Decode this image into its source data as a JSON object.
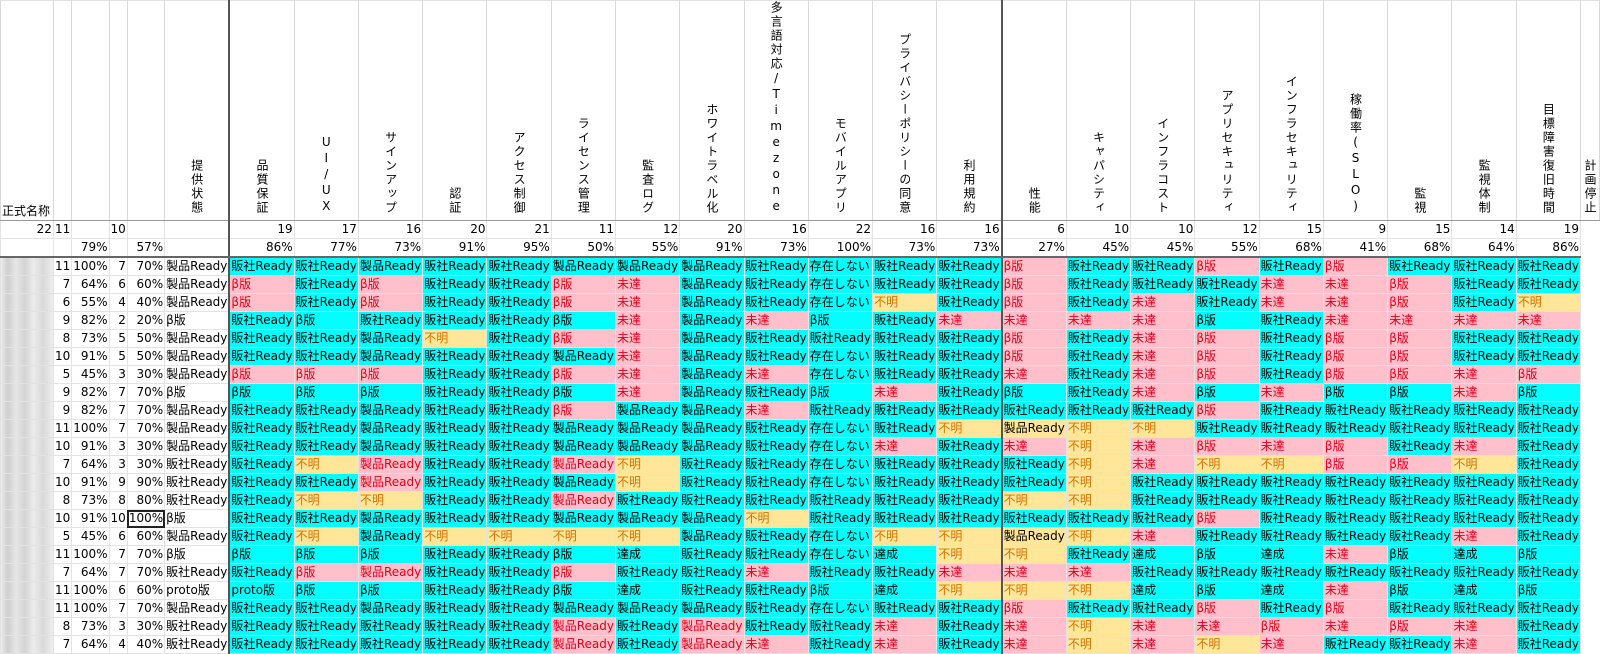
{
  "header": {
    "name_label": "正式名称",
    "columns": [
      "提供状態",
      "品質保証",
      "UI/UX",
      "サインアップ",
      "認証",
      "アクセス制御",
      "ライセンス管理",
      "監査ログ",
      "ホワイトラベル化",
      "多言語対応/Timezone",
      "モバイルアプリ",
      "プライバシーポリシーの同意",
      "利用規約",
      "性能",
      "キャパシティ",
      "インフラコスト",
      "アプリセキュリティ",
      "インフラセキュリティ",
      "稼働率(SLO)",
      "監視",
      "監視体制",
      "目標障害復旧時間",
      "計画停止"
    ]
  },
  "counts": {
    "a": "22",
    "b": "11",
    "c": "",
    "d": "10",
    "e": "",
    "cols": [
      "",
      "19",
      "17",
      "16",
      "20",
      "21",
      "11",
      "12",
      "20",
      "16",
      "22",
      "16",
      "16",
      "6",
      "10",
      "10",
      "12",
      "15",
      "9",
      "15",
      "14",
      "19"
    ]
  },
  "percents": {
    "a": "",
    "b": "",
    "c": "79%",
    "d": "",
    "e": "57%",
    "cols": [
      "",
      "86%",
      "77%",
      "73%",
      "91%",
      "95%",
      "50%",
      "55%",
      "91%",
      "73%",
      "100%",
      "73%",
      "73%",
      "27%",
      "45%",
      "45%",
      "55%",
      "68%",
      "41%",
      "68%",
      "64%",
      "86%"
    ]
  },
  "legend": {
    "ready_vendor": "販社Ready",
    "ready_product": "製品Ready",
    "beta": "β版",
    "unachieved": "未達",
    "unknown": "不明",
    "none": "存在しない",
    "achieved": "達成",
    "proto": "proto版"
  },
  "colors": {
    "cyan": "#00ffff",
    "pink": "#ffc0cb",
    "yellow": "#ffe699",
    "red_text": "#e0001b",
    "orange_text": "#d27400"
  },
  "rows": [
    {
      "n1": "11",
      "p1": "100%",
      "n2": "7",
      "p2": "70%",
      "state": "製品Ready",
      "cells": [
        "販社Ready",
        "販社Ready",
        "製品Ready",
        "販社Ready",
        "販社Ready",
        "製品Ready",
        "製品Ready",
        "製品Ready",
        "販社Ready",
        "存在しない",
        "販社Ready",
        "販社Ready",
        "β版",
        "販社Ready",
        "販社Ready",
        "β版",
        "販社Ready",
        "β版",
        "販社Ready",
        "販社Ready",
        "販社Ready"
      ]
    },
    {
      "n1": "7",
      "p1": "64%",
      "n2": "6",
      "p2": "60%",
      "state": "製品Ready",
      "cells": [
        "β版",
        "販社Ready",
        "β版",
        "販社Ready",
        "販社Ready",
        "β版",
        "未達",
        "製品Ready",
        "販社Ready",
        "存在しない",
        "販社Ready",
        "販社Ready",
        "β版",
        "販社Ready",
        "販社Ready",
        "販社Ready",
        "未達",
        "未達",
        "β版",
        "販社Ready",
        "販社Ready"
      ]
    },
    {
      "n1": "6",
      "p1": "55%",
      "n2": "4",
      "p2": "40%",
      "state": "製品Ready",
      "cells": [
        "β版",
        "販社Ready",
        "β版",
        "販社Ready",
        "販社Ready",
        "β版",
        "未達",
        "製品Ready",
        "販社Ready",
        "存在しない",
        "不明",
        "販社Ready",
        "β版",
        "販社Ready",
        "未達",
        "販社Ready",
        "未達",
        "未達",
        "β版",
        "販社Ready",
        "不明"
      ]
    },
    {
      "n1": "9",
      "p1": "82%",
      "n2": "2",
      "p2": "20%",
      "state": "β版",
      "cells": [
        "販社Ready",
        "β版",
        "販社Ready",
        "販社Ready",
        "販社Ready",
        "β版",
        "未達",
        "製品Ready",
        "未達",
        "β版",
        "販社Ready",
        "未達",
        "未達",
        "未達",
        "未達",
        "β版",
        "販社Ready",
        "未達",
        "未達",
        "未達",
        "未達"
      ]
    },
    {
      "n1": "8",
      "p1": "73%",
      "n2": "5",
      "p2": "50%",
      "state": "製品Ready",
      "cells": [
        "販社Ready",
        "販社Ready",
        "製品Ready",
        "不明",
        "販社Ready",
        "β版",
        "未達",
        "製品Ready",
        "販社Ready",
        "販社Ready",
        "販社Ready",
        "販社Ready",
        "β版",
        "販社Ready",
        "未達",
        "β版",
        "販社Ready",
        "β版",
        "β版",
        "販社Ready",
        "販社Ready"
      ]
    },
    {
      "n1": "10",
      "p1": "91%",
      "n2": "5",
      "p2": "50%",
      "state": "製品Ready",
      "cells": [
        "販社Ready",
        "販社Ready",
        "製品Ready",
        "販社Ready",
        "販社Ready",
        "製品Ready",
        "未達",
        "製品Ready",
        "販社Ready",
        "存在しない",
        "販社Ready",
        "販社Ready",
        "β版",
        "販社Ready",
        "未達",
        "β版",
        "販社Ready",
        "β版",
        "β版",
        "販社Ready",
        "販社Ready"
      ]
    },
    {
      "n1": "5",
      "p1": "45%",
      "n2": "3",
      "p2": "30%",
      "state": "製品Ready",
      "cells": [
        "β版",
        "β版",
        "β版",
        "販社Ready",
        "販社Ready",
        "β版",
        "未達",
        "製品Ready",
        "未達",
        "存在しない",
        "販社Ready",
        "販社Ready",
        "未達",
        "販社Ready",
        "未達",
        "β版",
        "販社Ready",
        "β版",
        "β版",
        "未達",
        "β版"
      ]
    },
    {
      "n1": "9",
      "p1": "82%",
      "n2": "7",
      "p2": "70%",
      "state": "β版",
      "cells": [
        "β版",
        "β版",
        "β版",
        "販社Ready",
        "販社Ready",
        "β版",
        "未達",
        "製品Ready",
        "販社Ready",
        "β版",
        "未達",
        "販社Ready",
        "β版",
        "販社Ready",
        "未達",
        "β版",
        "未達",
        "β版",
        "β版",
        "未達",
        "β版"
      ]
    },
    {
      "n1": "9",
      "p1": "82%",
      "n2": "7",
      "p2": "70%",
      "state": "製品Ready",
      "cells": [
        "販社Ready",
        "販社Ready",
        "製品Ready",
        "販社Ready",
        "販社Ready",
        "β版",
        "製品Ready",
        "製品Ready",
        "未達",
        "販社Ready",
        "販社Ready",
        "販社Ready",
        "販社Ready",
        "販社Ready",
        "販社Ready",
        "β版",
        "販社Ready",
        "販社Ready",
        "販社Ready",
        "販社Ready",
        "販社Ready"
      ]
    },
    {
      "n1": "11",
      "p1": "100%",
      "n2": "7",
      "p2": "70%",
      "state": "製品Ready",
      "cells": [
        "販社Ready",
        "販社Ready",
        "製品Ready",
        "販社Ready",
        "販社Ready",
        "製品Ready",
        "製品Ready",
        "製品Ready",
        "販社Ready",
        "存在しない",
        "販社Ready",
        "不明",
        "製品Ready",
        "不明",
        "不明",
        "販社Ready",
        "販社Ready",
        "販社Ready",
        "販社Ready",
        "販社Ready",
        "販社Ready"
      ]
    },
    {
      "n1": "10",
      "p1": "91%",
      "n2": "3",
      "p2": "30%",
      "state": "製品Ready",
      "cells": [
        "販社Ready",
        "販社Ready",
        "製品Ready",
        "販社Ready",
        "販社Ready",
        "製品Ready",
        "製品Ready",
        "製品Ready",
        "販社Ready",
        "存在しない",
        "未達",
        "販社Ready",
        "未達",
        "不明",
        "未達",
        "β版",
        "未達",
        "β版",
        "販社Ready",
        "未達",
        "販社Ready"
      ]
    },
    {
      "n1": "7",
      "p1": "64%",
      "n2": "3",
      "p2": "30%",
      "state": "販社Ready",
      "cells": [
        "販社Ready",
        "不明",
        "製品Ready",
        "販社Ready",
        "販社Ready",
        "製品Ready",
        "不明",
        "販社Ready",
        "販社Ready",
        "存在しない",
        "販社Ready",
        "販社Ready",
        "販社Ready",
        "不明",
        "未達",
        "不明",
        "不明",
        "β版",
        "β版",
        "不明",
        "販社Ready"
      ]
    },
    {
      "n1": "10",
      "p1": "91%",
      "n2": "9",
      "p2": "90%",
      "state": "販社Ready",
      "cells": [
        "販社Ready",
        "販社Ready",
        "製品Ready",
        "販社Ready",
        "販社Ready",
        "製品Ready",
        "不明",
        "販社Ready",
        "販社Ready",
        "存在しない",
        "販社Ready",
        "販社Ready",
        "販社Ready",
        "不明",
        "販社Ready",
        "販社Ready",
        "販社Ready",
        "販社Ready",
        "販社Ready",
        "販社Ready",
        "販社Ready"
      ]
    },
    {
      "n1": "8",
      "p1": "73%",
      "n2": "8",
      "p2": "80%",
      "state": "販社Ready",
      "cells": [
        "販社Ready",
        "不明",
        "不明",
        "販社Ready",
        "販社Ready",
        "製品Ready",
        "販社Ready",
        "販社Ready",
        "販社Ready",
        "販社Ready",
        "販社Ready",
        "販社Ready",
        "不明",
        "不明",
        "販社Ready",
        "販社Ready",
        "販社Ready",
        "販社Ready",
        "販社Ready",
        "販社Ready",
        "販社Ready"
      ]
    },
    {
      "n1": "10",
      "p1": "91%",
      "n2": "10",
      "p2": "100%",
      "state": "β版",
      "cells": [
        "販社Ready",
        "販社Ready",
        "製品Ready",
        "販社Ready",
        "販社Ready",
        "製品Ready",
        "製品Ready",
        "製品Ready",
        "不明",
        "販社Ready",
        "販社Ready",
        "販社Ready",
        "販社Ready",
        "販社Ready",
        "販社Ready",
        "β版",
        "販社Ready",
        "販社Ready",
        "販社Ready",
        "販社Ready",
        "販社Ready"
      ]
    },
    {
      "n1": "5",
      "p1": "45%",
      "n2": "6",
      "p2": "60%",
      "state": "製品Ready",
      "cells": [
        "販社Ready",
        "不明",
        "製品Ready",
        "不明",
        "不明",
        "不明",
        "不明",
        "製品Ready",
        "販社Ready",
        "存在しない",
        "不明",
        "不明",
        "製品Ready",
        "不明",
        "未達",
        "販社Ready",
        "販社Ready",
        "販社Ready",
        "販社Ready",
        "未達",
        "販社Ready"
      ]
    },
    {
      "n1": "11",
      "p1": "100%",
      "n2": "7",
      "p2": "70%",
      "state": "β版",
      "cells": [
        "β版",
        "β版",
        "β版",
        "販社Ready",
        "販社Ready",
        "β版",
        "達成",
        "販社Ready",
        "販社Ready",
        "存在しない",
        "達成",
        "不明",
        "不明",
        "販社Ready",
        "達成",
        "β版",
        "達成",
        "未達",
        "β版",
        "達成",
        "β版"
      ]
    },
    {
      "n1": "7",
      "p1": "64%",
      "n2": "7",
      "p2": "70%",
      "state": "販社Ready",
      "cells": [
        "販社Ready",
        "β版",
        "製品Ready",
        "販社Ready",
        "販社Ready",
        "β版",
        "販社Ready",
        "販社Ready",
        "未達",
        "販社Ready",
        "販社Ready",
        "未達",
        "未達",
        "未達",
        "販社Ready",
        "販社Ready",
        "販社Ready",
        "販社Ready",
        "販社Ready",
        "販社Ready",
        "販社Ready"
      ]
    },
    {
      "n1": "11",
      "p1": "100%",
      "n2": "6",
      "p2": "60%",
      "state": "proto版",
      "cells": [
        "proto版",
        "β版",
        "β版",
        "販社Ready",
        "販社Ready",
        "β版",
        "達成",
        "販社Ready",
        "販社Ready",
        "β版",
        "達成",
        "不明",
        "不明",
        "不明",
        "達成",
        "β版",
        "達成",
        "未達",
        "β版",
        "達成",
        "β版"
      ]
    },
    {
      "n1": "11",
      "p1": "100%",
      "n2": "7",
      "p2": "70%",
      "state": "製品Ready",
      "cells": [
        "販社Ready",
        "販社Ready",
        "製品Ready",
        "販社Ready",
        "販社Ready",
        "製品Ready",
        "製品Ready",
        "製品Ready",
        "販社Ready",
        "存在しない",
        "販社Ready",
        "販社Ready",
        "β版",
        "販社Ready",
        "販社Ready",
        "β版",
        "販社Ready",
        "β版",
        "販社Ready",
        "販社Ready",
        "販社Ready"
      ]
    },
    {
      "n1": "8",
      "p1": "73%",
      "n2": "3",
      "p2": "30%",
      "state": "販社Ready",
      "cells": [
        "販社Ready",
        "販社Ready",
        "販社Ready",
        "販社Ready",
        "販社Ready",
        "製品Ready",
        "販社Ready",
        "製品Ready",
        "販社Ready",
        "販社Ready",
        "未達",
        "販社Ready",
        "未達",
        "不明",
        "未達",
        "未達",
        "β版",
        "未達",
        "β版",
        "未達",
        "販社Ready"
      ]
    },
    {
      "n1": "7",
      "p1": "64%",
      "n2": "4",
      "p2": "40%",
      "state": "販社Ready",
      "cells": [
        "販社Ready",
        "販社Ready",
        "販社Ready",
        "販社Ready",
        "販社Ready",
        "製品Ready",
        "販社Ready",
        "製品Ready",
        "未達",
        "販社Ready",
        "未達",
        "販社Ready",
        "未達",
        "不明",
        "未達",
        "不明",
        "未達",
        "販社Ready",
        "販社Ready",
        "未達",
        "販社Ready"
      ]
    }
  ]
}
